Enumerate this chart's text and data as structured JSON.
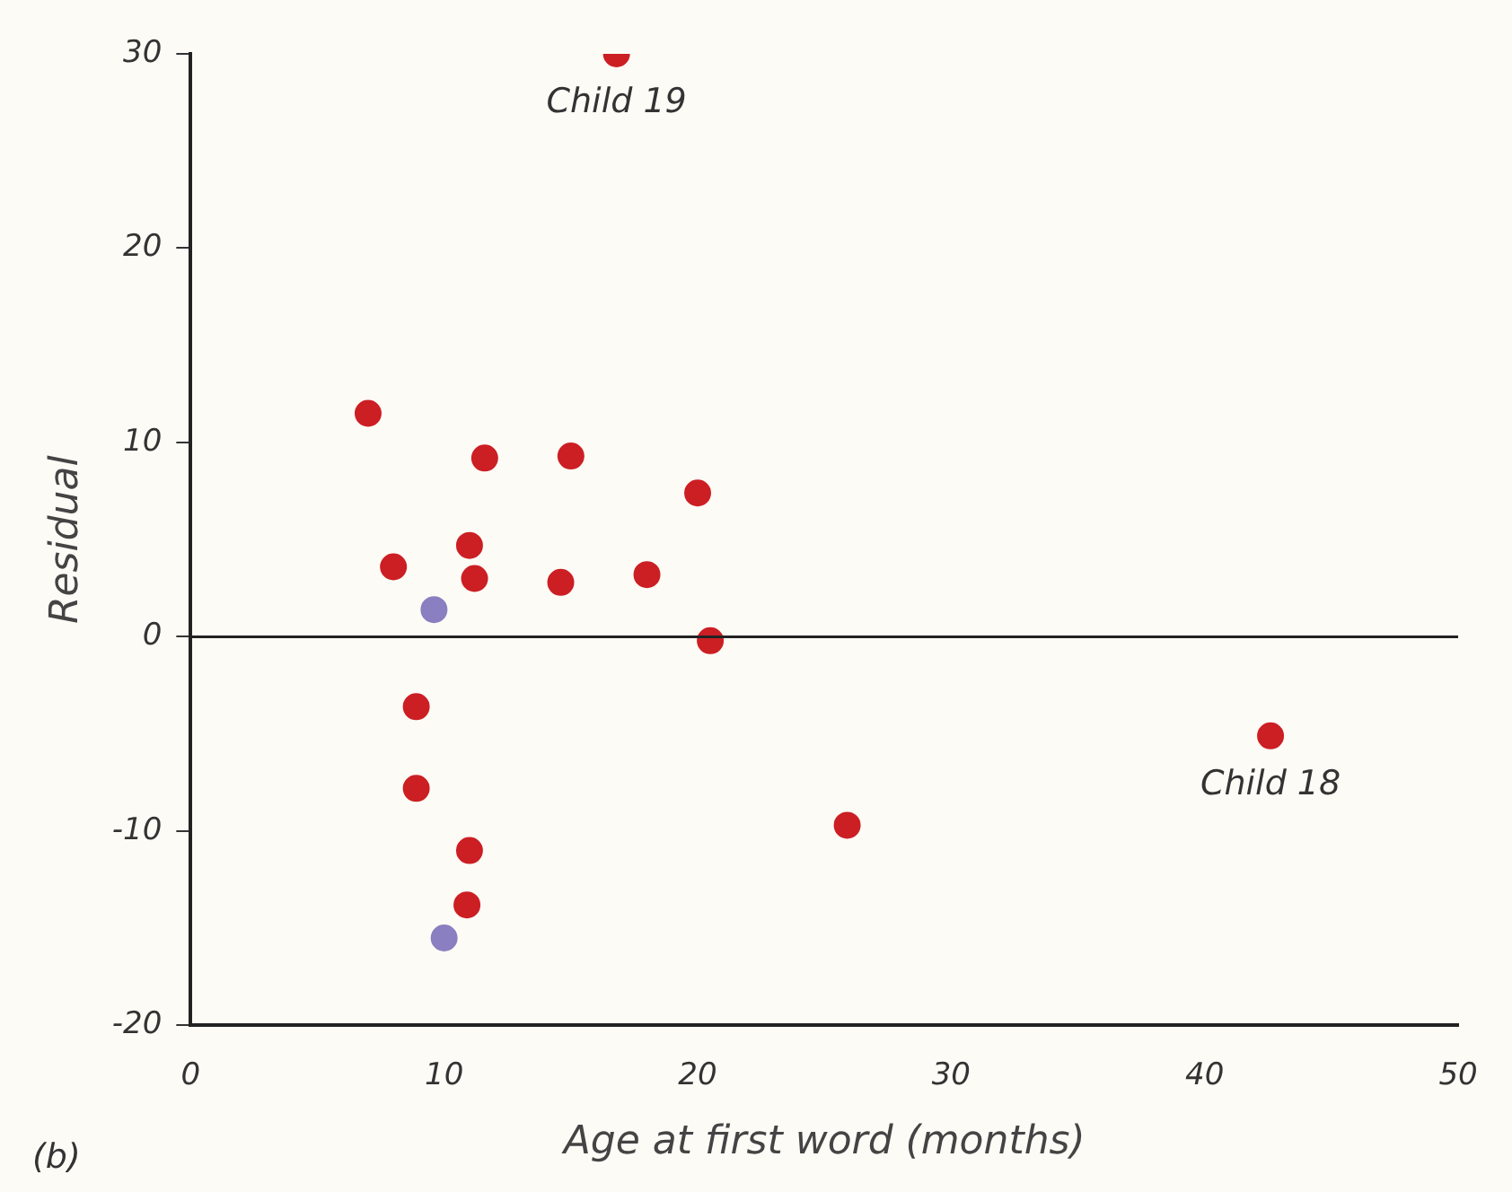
{
  "chart_data": {
    "type": "scatter",
    "xlabel": "Age at first word (months)",
    "ylabel": "Residual",
    "xlim": [
      0,
      50
    ],
    "xticks": [
      0,
      10,
      20,
      30,
      40,
      50
    ],
    "ylim": [
      -20,
      30
    ],
    "yticks": [
      -20,
      -10,
      0,
      10,
      20,
      30
    ],
    "grid": false,
    "legend": false,
    "marker": "circle",
    "series": [
      {
        "color": "#cc1f24",
        "x": [
          7.0,
          8.0,
          8.9,
          8.9,
          11.0,
          11.2,
          11.6,
          11.0,
          10.9,
          15.0,
          14.6,
          18.0,
          16.8,
          20.0,
          20.5,
          25.9,
          42.6
        ],
        "values": [
          11.5,
          3.6,
          -3.6,
          -7.8,
          4.7,
          3.0,
          9.2,
          -11.0,
          -13.8,
          9.3,
          2.8,
          3.2,
          30,
          7.4,
          -0.2,
          -9.7,
          -5.1
        ]
      },
      {
        "color": "#8a7fc0",
        "x": [
          9.6,
          10.0
        ],
        "values": [
          1.4,
          -15.5
        ]
      }
    ],
    "ref_lines": [
      {
        "axis": "y",
        "value": 0,
        "color": "#222222"
      }
    ],
    "annotations": [
      {
        "text": "Child 19",
        "x": 16.8,
        "y": 30
      },
      {
        "text": "Child 18",
        "x": 42.6,
        "y": -5.1
      },
      "(b)"
    ]
  }
}
